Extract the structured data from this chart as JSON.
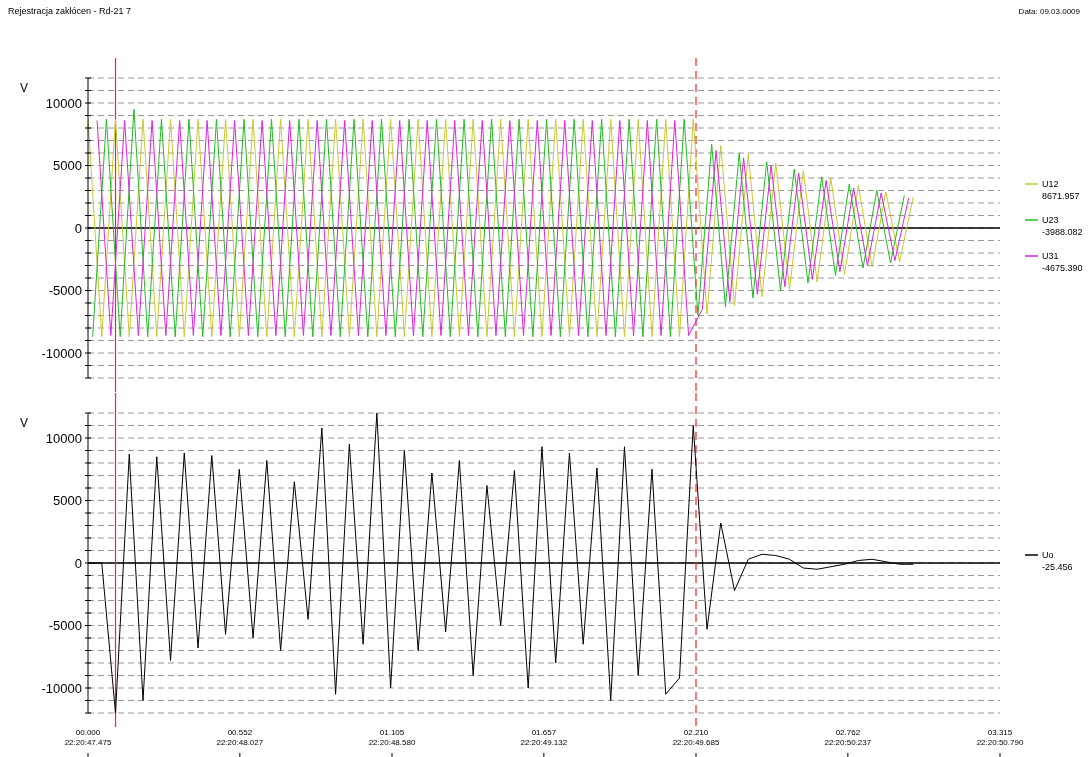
{
  "chart_data": [
    {
      "type": "line",
      "title": "Rejestracja zakłócen - Rd-21 7",
      "ylabel": "V",
      "legend": "right",
      "grid": "y",
      "tick_labels": "y",
      "annotations": [
        "8671.957",
        "-3988.082",
        "-4675.390",
        "Data: 09.03.0009"
      ],
      "xlim": [
        0,
        3.315
      ],
      "ylim": [
        -12000,
        12000
      ],
      "yticks": [
        {
          "value": -12000,
          "label": null
        },
        {
          "value": -11000,
          "label": null
        },
        -10000,
        {
          "value": -9000,
          "label": null
        },
        {
          "value": -8000,
          "label": null
        },
        {
          "value": -7000,
          "label": null
        },
        {
          "value": -6000,
          "label": null
        },
        -5000,
        {
          "value": -4000,
          "label": null
        },
        {
          "value": -3000,
          "label": null
        },
        {
          "value": -2000,
          "label": null
        },
        {
          "value": -1000,
          "label": null
        },
        0,
        {
          "value": 1000,
          "label": null
        },
        {
          "value": 2000,
          "label": null
        },
        {
          "value": 3000,
          "label": null
        },
        {
          "value": 4000,
          "label": null
        },
        5000,
        {
          "value": 6000,
          "label": null
        },
        {
          "value": 7000,
          "label": null
        },
        {
          "value": 8000,
          "label": null
        },
        {
          "value": 9000,
          "label": null
        },
        10000,
        {
          "value": 11000,
          "label": null
        },
        {
          "value": 12000,
          "label": null
        }
      ],
      "ref_lines": [
        {
          "axis": "x",
          "value": 0.1,
          "color": "#ff2020",
          "line_style": "solid"
        },
        {
          "axis": "x",
          "value": 2.21,
          "color": "#ff2020",
          "line_style": "dashed"
        }
      ],
      "x": [
        0,
        0.05,
        0.1,
        0.15,
        0.2,
        0.25,
        0.3,
        0.35,
        0.4,
        0.45,
        0.5,
        0.55,
        0.6,
        0.65,
        0.7,
        0.75,
        0.8,
        0.85,
        0.9,
        0.95,
        1.0,
        1.05,
        1.1,
        1.15,
        1.2,
        1.25,
        1.3,
        1.35,
        1.4,
        1.45,
        1.5,
        1.55,
        1.6,
        1.65,
        1.7,
        1.75,
        1.8,
        1.85,
        1.9,
        1.95,
        2.0,
        2.05,
        2.1,
        2.15,
        2.2,
        2.25,
        2.3,
        2.35,
        2.4,
        2.45,
        2.5,
        2.55,
        2.6,
        2.65,
        2.7,
        2.75,
        2.8,
        2.85,
        2.9,
        2.95,
        3.0
      ],
      "series": [
        {
          "name": "U12",
          "color": "#c8c832",
          "values": [
            8700,
            -8700,
            8700,
            -8700,
            8700,
            -8700,
            8700,
            -8700,
            8700,
            -8700,
            8700,
            -8700,
            8700,
            -8700,
            8700,
            -8700,
            8700,
            -8700,
            8700,
            -8700,
            8700,
            -8700,
            8700,
            -8700,
            8700,
            -8700,
            8700,
            -8700,
            8700,
            -8700,
            8700,
            -8700,
            8700,
            -8700,
            8700,
            -8700,
            8700,
            -8700,
            8700,
            -8700,
            8700,
            -8700,
            8700,
            -8700,
            8700,
            -6900,
            6600,
            -6200,
            5900,
            -5500,
            5200,
            -4900,
            4600,
            -4300,
            4000,
            -3700,
            3400,
            -3100,
            2900,
            -2700,
            2500
          ]
        },
        {
          "name": "U23",
          "color": "#22bb22",
          "x": [
            0.017,
            0.067,
            0.117,
            0.167,
            0.217,
            0.267,
            0.317,
            0.367,
            0.417,
            0.467,
            0.517,
            0.567,
            0.617,
            0.667,
            0.717,
            0.767,
            0.817,
            0.867,
            0.917,
            0.967,
            1.017,
            1.067,
            1.117,
            1.167,
            1.217,
            1.267,
            1.317,
            1.367,
            1.417,
            1.467,
            1.517,
            1.567,
            1.617,
            1.667,
            1.717,
            1.767,
            1.817,
            1.867,
            1.917,
            1.967,
            2.017,
            2.067,
            2.117,
            2.167,
            2.217,
            2.267,
            2.317,
            2.367,
            2.417,
            2.467,
            2.517,
            2.567,
            2.617,
            2.667,
            2.717,
            2.767,
            2.817,
            2.867,
            2.917,
            2.967
          ],
          "values": [
            -8700,
            8700,
            -8700,
            9500,
            -8700,
            8700,
            -8700,
            8700,
            -8700,
            8700,
            -8700,
            8700,
            -8700,
            8700,
            -8700,
            8700,
            -8700,
            8700,
            -8700,
            8700,
            -8700,
            8700,
            -8700,
            8700,
            -8700,
            8700,
            -8700,
            8700,
            -8700,
            8700,
            -8700,
            8700,
            -8700,
            8700,
            -8700,
            8700,
            -8700,
            8700,
            -8700,
            8700,
            -8700,
            8700,
            -8700,
            8700,
            -7000,
            6700,
            -6300,
            6000,
            -5600,
            5300,
            -5000,
            4700,
            -4400,
            4100,
            -3800,
            3500,
            -3200,
            3000,
            -2800,
            2600
          ]
        },
        {
          "name": "U31",
          "color": "#dd22dd",
          "x": [
            0.033,
            0.083,
            0.133,
            0.183,
            0.233,
            0.283,
            0.333,
            0.383,
            0.433,
            0.483,
            0.533,
            0.583,
            0.633,
            0.683,
            0.733,
            0.783,
            0.833,
            0.883,
            0.933,
            0.983,
            1.033,
            1.083,
            1.133,
            1.183,
            1.233,
            1.283,
            1.333,
            1.383,
            1.433,
            1.483,
            1.533,
            1.583,
            1.633,
            1.683,
            1.733,
            1.783,
            1.833,
            1.883,
            1.933,
            1.983,
            2.033,
            2.083,
            2.133,
            2.183,
            2.233,
            2.283,
            2.333,
            2.383,
            2.433,
            2.483,
            2.533,
            2.583,
            2.633,
            2.683,
            2.733,
            2.783,
            2.833,
            2.883,
            2.933,
            2.983
          ],
          "values": [
            8600,
            -8600,
            8600,
            -8600,
            8600,
            -8600,
            8600,
            -8600,
            8600,
            -8600,
            8600,
            -8600,
            8600,
            -8600,
            8600,
            -8600,
            8600,
            -8600,
            8600,
            -8600,
            8600,
            -8600,
            8600,
            -8600,
            8600,
            -8600,
            8600,
            -8600,
            8600,
            -8600,
            8600,
            -8600,
            8600,
            -8600,
            8600,
            -8600,
            8600,
            -8600,
            8600,
            -8600,
            8600,
            -8600,
            8600,
            -8600,
            -6500,
            6200,
            -5900,
            5600,
            -5300,
            5000,
            -4700,
            4400,
            -4100,
            3800,
            -3500,
            3200,
            -3000,
            2800,
            -2600,
            2400
          ]
        }
      ]
    },
    {
      "type": "line",
      "ylabel": "V",
      "legend": "right",
      "grid": "y",
      "annotations": [
        "-25.456",
        "22:20:47.475",
        "22:20:48.027",
        "22:20:48.580",
        "22:20:49.132",
        "22:20:49.685",
        "22:20:50.237",
        "22:20:50.790"
      ],
      "xlim": [
        0,
        3.315
      ],
      "xticks": [
        {
          "value": 0,
          "label": "00.000"
        },
        {
          "value": 0.552,
          "label": "00.552"
        },
        {
          "value": 1.105,
          "label": "01.105"
        },
        {
          "value": 1.657,
          "label": "01.657"
        },
        {
          "value": 2.21,
          "label": "02.210"
        },
        {
          "value": 2.762,
          "label": "02.762"
        },
        {
          "value": 3.315,
          "label": "03.315"
        }
      ],
      "ylim": [
        -12000,
        12000
      ],
      "yticks": [
        {
          "value": -12000,
          "label": null
        },
        {
          "value": -11000,
          "label": null
        },
        -10000,
        {
          "value": -9000,
          "label": null
        },
        {
          "value": -8000,
          "label": null
        },
        {
          "value": -7000,
          "label": null
        },
        {
          "value": -6000,
          "label": null
        },
        -5000,
        {
          "value": -4000,
          "label": null
        },
        {
          "value": -3000,
          "label": null
        },
        {
          "value": -2000,
          "label": null
        },
        {
          "value": -1000,
          "label": null
        },
        0,
        {
          "value": 1000,
          "label": null
        },
        {
          "value": 2000,
          "label": null
        },
        {
          "value": 3000,
          "label": null
        },
        {
          "value": 4000,
          "label": null
        },
        5000,
        {
          "value": 6000,
          "label": null
        },
        {
          "value": 7000,
          "label": null
        },
        {
          "value": 8000,
          "label": null
        },
        {
          "value": 9000,
          "label": null
        },
        10000,
        {
          "value": 11000,
          "label": null
        },
        {
          "value": 12000,
          "label": null
        }
      ],
      "ref_lines": [
        {
          "axis": "x",
          "value": 0.1,
          "color": "#ff2020",
          "line_style": "solid"
        },
        {
          "axis": "x",
          "value": 2.21,
          "color": "#ff2020",
          "line_style": "dashed"
        }
      ],
      "x": [
        0,
        0.05,
        0.1,
        0.15,
        0.2,
        0.25,
        0.3,
        0.35,
        0.4,
        0.45,
        0.5,
        0.55,
        0.6,
        0.65,
        0.7,
        0.75,
        0.8,
        0.85,
        0.9,
        0.95,
        1.0,
        1.05,
        1.1,
        1.15,
        1.2,
        1.25,
        1.3,
        1.35,
        1.4,
        1.45,
        1.5,
        1.55,
        1.6,
        1.65,
        1.7,
        1.75,
        1.8,
        1.85,
        1.9,
        1.95,
        2.0,
        2.05,
        2.1,
        2.15,
        2.2,
        2.25,
        2.3,
        2.35,
        2.4,
        2.45,
        2.5,
        2.55,
        2.6,
        2.65,
        2.7,
        2.75,
        2.8,
        2.85,
        2.9,
        2.95,
        3.0
      ],
      "series": [
        {
          "name": "Uo",
          "color": "#000000",
          "values": [
            0,
            0,
            -12000,
            8700,
            -11000,
            8500,
            -7800,
            8800,
            -6800,
            8600,
            -5700,
            7500,
            -6000,
            8200,
            -7000,
            6500,
            -4500,
            10800,
            -10500,
            9500,
            -6500,
            12000,
            -10000,
            9000,
            -7000,
            7200,
            -5500,
            8200,
            -9000,
            6200,
            -5000,
            7400,
            -10000,
            9300,
            -8000,
            8800,
            -6500,
            7600,
            -11000,
            9300,
            -9000,
            7500,
            -10500,
            -9200,
            11000,
            -5300,
            3200,
            -2200,
            300,
            700,
            600,
            300,
            -400,
            -500,
            -300,
            -100,
            200,
            300,
            100,
            -100,
            -100
          ]
        }
      ]
    }
  ]
}
